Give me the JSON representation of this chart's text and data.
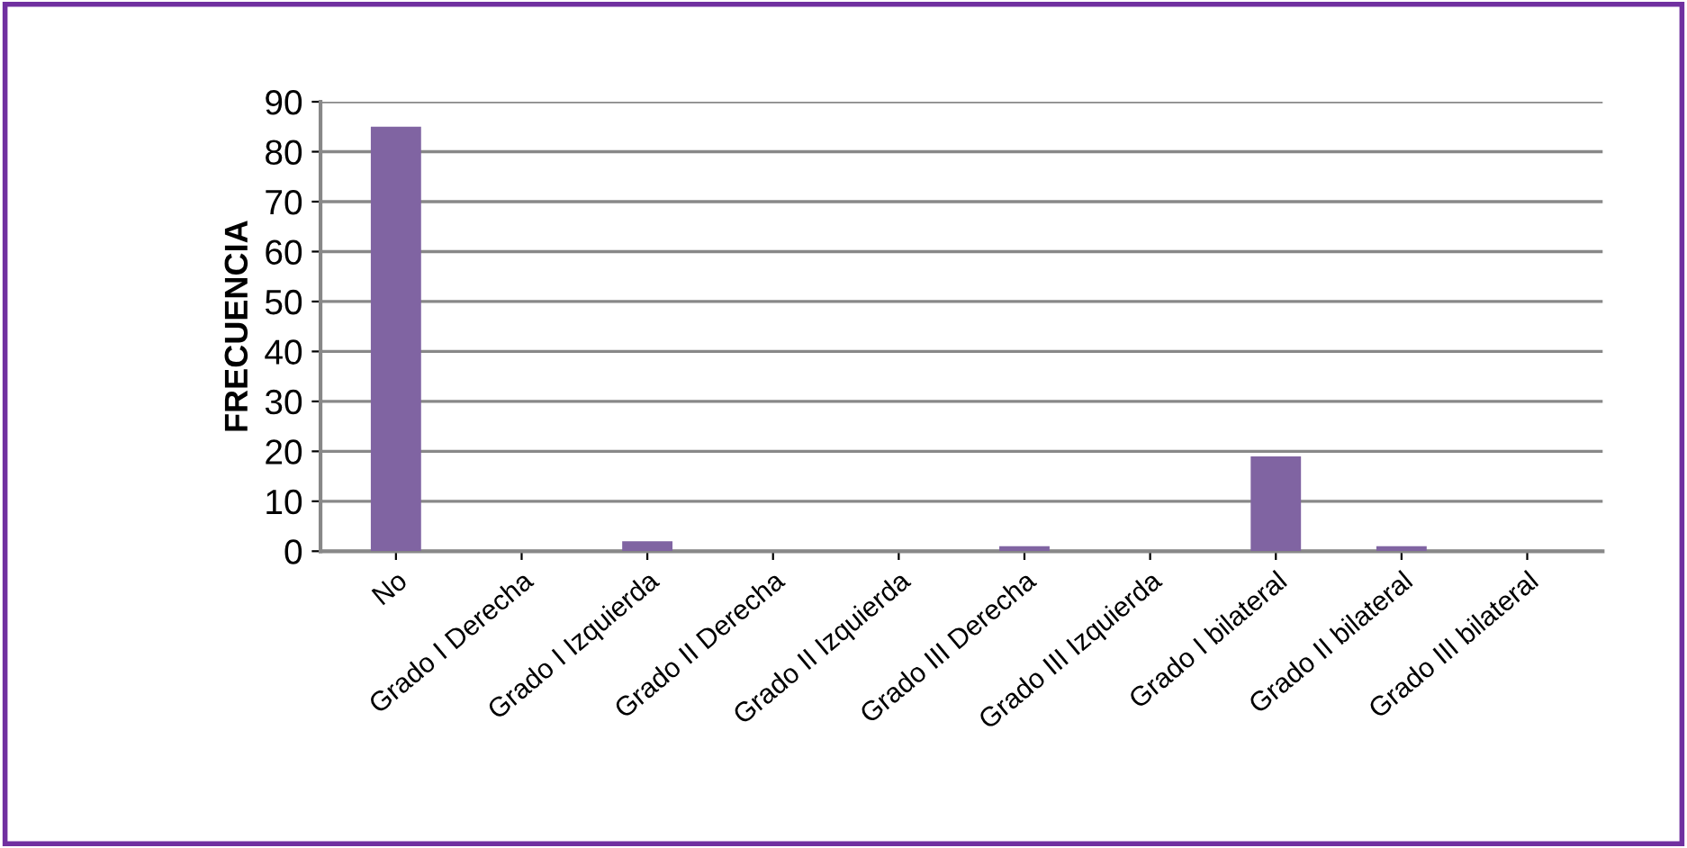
{
  "chart_data": {
    "type": "bar",
    "ylabel": "FRECUENCIA",
    "categories": [
      "No",
      "Grado I Derecha",
      "Grado I Izquierda",
      "Grado II Derecha",
      "Grado II Izquierda",
      "Grado III Derecha",
      "Grado III Izquierda",
      "Grado I bilateral",
      "Grado II bilateral",
      "Grado III bilateral"
    ],
    "values": [
      85,
      0,
      2,
      0,
      0,
      1,
      0,
      19,
      1,
      0
    ],
    "color": "#8064a2",
    "ylim": [
      0,
      90
    ],
    "yticks": [
      0,
      10,
      20,
      30,
      40,
      50,
      60,
      70,
      80,
      90
    ],
    "grid": "y"
  }
}
